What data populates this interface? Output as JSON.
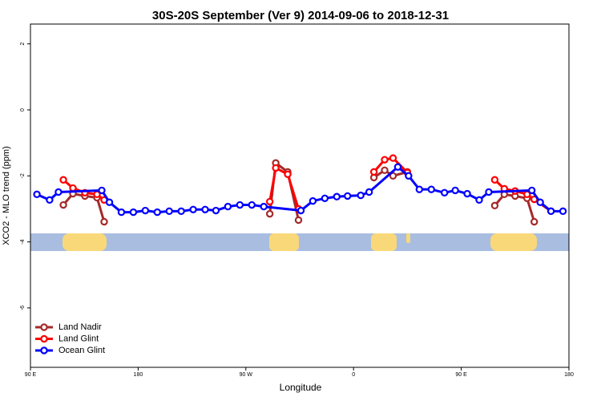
{
  "chart_data": {
    "type": "line",
    "title": "30S-20S September (Ver 9)   2014-09-06 to 2018-12-31",
    "x_label": "Longitude",
    "y_label": "XCO2 - MLO trend (ppm)",
    "xlim": [
      90,
      540
    ],
    "ylim": [
      -7.8,
      2.6
    ],
    "xticks": [
      {
        "value": 90,
        "label": "90 E"
      },
      180,
      {
        "value": 270,
        "label": "90 W"
      },
      {
        "value": 360,
        "label": "0"
      },
      {
        "value": 450,
        "label": "90 E"
      },
      {
        "value": 540,
        "label": "180"
      }
    ],
    "yticks": [
      2,
      0,
      -2,
      -4,
      -6
    ],
    "legend": "bottom-left",
    "series": [
      {
        "name": "Land Nadir",
        "color": "#a52a2a",
        "x": [
          117.5,
          125.5,
          135.5,
          145.6,
          151.6,
          null,
          290,
          295,
          305,
          314,
          null,
          377,
          386,
          393,
          405,
          null,
          478,
          486,
          495,
          505,
          511
        ],
        "values": [
          -2.88,
          -2.54,
          -2.61,
          -2.66,
          -3.39,
          null,
          -3.15,
          -1.61,
          -1.88,
          -3.34,
          null,
          -2.05,
          -1.83,
          -2.0,
          -1.88,
          null,
          -2.9,
          -2.56,
          -2.61,
          -2.68,
          -3.39
        ]
      },
      {
        "name": "Land Glint",
        "color": "#ff0000",
        "x": [
          117.5,
          125.5,
          135.5,
          145.6,
          151.6,
          null,
          290,
          295,
          305,
          314,
          null,
          377,
          386,
          393,
          405,
          null,
          478,
          486,
          495,
          505,
          511,
          525
        ],
        "values": [
          -2.12,
          -2.37,
          -2.51,
          -2.56,
          -2.73,
          null,
          -2.78,
          -1.76,
          -1.95,
          -3.0,
          null,
          -1.88,
          -1.51,
          -1.46,
          -1.9,
          null,
          -2.12,
          -2.39,
          -2.46,
          -2.56,
          -2.71,
          -3.07
        ]
      },
      {
        "name": "Ocean Glint",
        "color": "#0000ff",
        "x": [
          95.4,
          106,
          113.4,
          149.6,
          156,
          166,
          176,
          186,
          196,
          206,
          216,
          226,
          236,
          245,
          255,
          265,
          275,
          285,
          316,
          326,
          336,
          346,
          355,
          366,
          373,
          397,
          406,
          415,
          425,
          436,
          445,
          455,
          465,
          473,
          509,
          516,
          525,
          535
        ],
        "values": [
          -2.56,
          -2.73,
          -2.49,
          -2.44,
          -2.8,
          -3.1,
          -3.1,
          -3.05,
          -3.1,
          -3.07,
          -3.07,
          -3.02,
          -3.02,
          -3.05,
          -2.93,
          -2.88,
          -2.88,
          -2.93,
          -3.05,
          -2.76,
          -2.68,
          -2.63,
          -2.61,
          -2.59,
          -2.49,
          -1.73,
          -2.0,
          -2.41,
          -2.41,
          -2.51,
          -2.44,
          -2.54,
          -2.73,
          -2.49,
          -2.44,
          -2.8,
          -3.07,
          -3.07
        ]
      }
    ]
  }
}
